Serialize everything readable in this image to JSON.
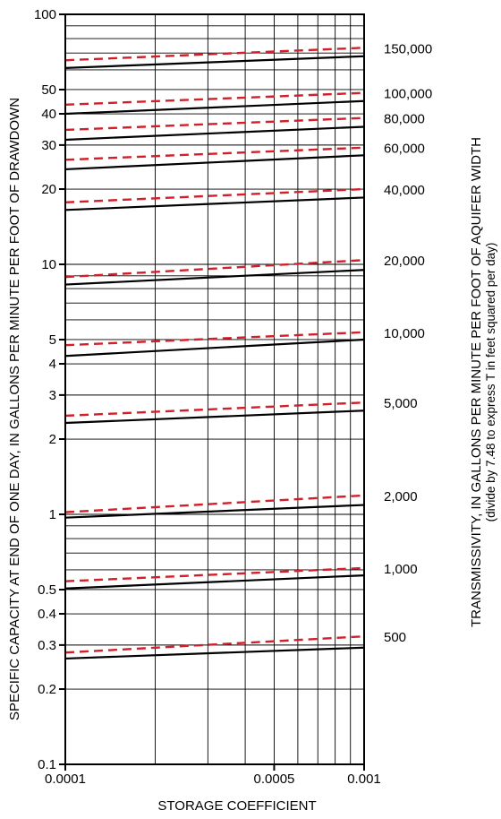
{
  "chart_data": {
    "type": "line",
    "x_scale": "log",
    "y_scale": "log",
    "xlim": [
      0.0001,
      0.001
    ],
    "ylim": [
      0.1,
      100
    ],
    "xlabel": "STORAGE COEFFICIENT",
    "ylabel": "SPECIFIC CAPACITY AT END OF ONE DAY, IN GALLONS PER MINUTE PER FOOT OF DRAWDOWN",
    "right_label": "TRANSMISSIVITY, IN GALLONS PER MINUTE PER FOOT OF AQUIFER WIDTH",
    "right_sublabel": "(divide by 7.48 to express T in feet squared per day)",
    "x_tick_labels": [
      {
        "value": 0.0001,
        "label": "0.0001"
      },
      {
        "value": 0.0005,
        "label": "0.0005"
      },
      {
        "value": 0.001,
        "label": "0.001"
      }
    ],
    "x_minor_gridlines": [
      0.0002,
      0.0003,
      0.0004,
      0.0006,
      0.0007,
      0.0008,
      0.0009
    ],
    "y_tick_labels": [
      {
        "value": 100,
        "label": "100"
      },
      {
        "value": 50,
        "label": "50"
      },
      {
        "value": 40,
        "label": "40"
      },
      {
        "value": 30,
        "label": "30"
      },
      {
        "value": 20,
        "label": "20"
      },
      {
        "value": 10,
        "label": "10"
      },
      {
        "value": 5,
        "label": "5"
      },
      {
        "value": 4,
        "label": "4"
      },
      {
        "value": 3,
        "label": "3"
      },
      {
        "value": 2,
        "label": "2"
      },
      {
        "value": 1,
        "label": "1"
      },
      {
        "value": 0.5,
        "label": "0.5"
      },
      {
        "value": 0.4,
        "label": "0.4"
      },
      {
        "value": 0.3,
        "label": "0.3"
      },
      {
        "value": 0.2,
        "label": "0.2"
      },
      {
        "value": 0.1,
        "label": "0.1"
      }
    ],
    "y_gridlines": [
      0.1,
      0.2,
      0.3,
      0.4,
      0.5,
      0.6,
      0.7,
      0.8,
      0.9,
      1,
      2,
      3,
      4,
      5,
      6,
      7,
      8,
      9,
      10,
      20,
      30,
      40,
      50,
      60,
      70,
      80,
      90,
      100
    ],
    "grid": true,
    "colors": {
      "solid": "#000000",
      "dashed": "#d0202a"
    },
    "series": [
      {
        "transmissivity_label": "150,000",
        "solid": [
          [
            0.0001,
            61
          ],
          [
            0.001,
            68
          ]
        ],
        "dashed": [
          [
            0.0001,
            65.5
          ],
          [
            0.001,
            73.5
          ]
        ]
      },
      {
        "transmissivity_label": "100,000",
        "solid": [
          [
            0.0001,
            40
          ],
          [
            0.001,
            45
          ]
        ],
        "dashed": [
          [
            0.0001,
            43.5
          ],
          [
            0.001,
            48.5
          ]
        ]
      },
      {
        "transmissivity_label": "80,000",
        "solid": [
          [
            0.0001,
            31.5
          ],
          [
            0.001,
            35.5
          ]
        ],
        "dashed": [
          [
            0.0001,
            34.5
          ],
          [
            0.001,
            38.5
          ]
        ]
      },
      {
        "transmissivity_label": "60,000",
        "solid": [
          [
            0.0001,
            24
          ],
          [
            0.001,
            27.3
          ]
        ],
        "dashed": [
          [
            0.0001,
            26.2
          ],
          [
            0.001,
            29.3
          ]
        ]
      },
      {
        "transmissivity_label": "40,000",
        "solid": [
          [
            0.0001,
            16.5
          ],
          [
            0.001,
            18.5
          ]
        ],
        "dashed": [
          [
            0.0001,
            17.7
          ],
          [
            0.001,
            20
          ]
        ]
      },
      {
        "transmissivity_label": "20,000",
        "solid": [
          [
            0.0001,
            8.3
          ],
          [
            0.001,
            9.5
          ]
        ],
        "dashed": [
          [
            0.0001,
            8.9
          ],
          [
            0.001,
            10.4
          ]
        ]
      },
      {
        "transmissivity_label": "10,000",
        "solid": [
          [
            0.0001,
            4.3
          ],
          [
            0.001,
            5
          ]
        ],
        "dashed": [
          [
            0.0001,
            4.75
          ],
          [
            0.001,
            5.35
          ]
        ]
      },
      {
        "transmissivity_label": "5,000",
        "solid": [
          [
            0.0001,
            2.32
          ],
          [
            0.001,
            2.6
          ]
        ],
        "dashed": [
          [
            0.0001,
            2.48
          ],
          [
            0.001,
            2.8
          ]
        ]
      },
      {
        "transmissivity_label": "2,000",
        "solid": [
          [
            0.0001,
            0.97
          ],
          [
            0.001,
            1.09
          ]
        ],
        "dashed": [
          [
            0.0001,
            1.02
          ],
          [
            0.001,
            1.19
          ]
        ]
      },
      {
        "transmissivity_label": "1,000",
        "solid": [
          [
            0.0001,
            0.505
          ],
          [
            0.001,
            0.57
          ]
        ],
        "dashed": [
          [
            0.0001,
            0.54
          ],
          [
            0.001,
            0.61
          ]
        ]
      },
      {
        "transmissivity_label": "500",
        "solid": [
          [
            0.0001,
            0.265
          ],
          [
            0.001,
            0.293
          ]
        ],
        "dashed": [
          [
            0.0001,
            0.28
          ],
          [
            0.001,
            0.325
          ]
        ]
      }
    ]
  }
}
